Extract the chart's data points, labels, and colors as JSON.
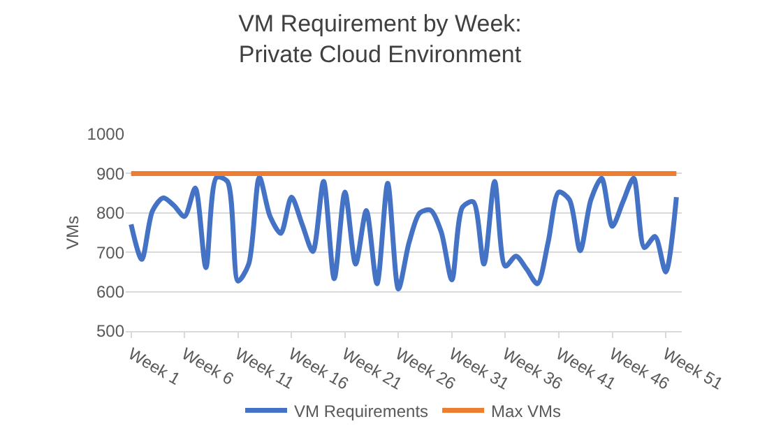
{
  "chart_data": {
    "type": "line",
    "title": "VM Requirement by Week:\nPrivate Cloud Environment",
    "ylabel": "VMs",
    "categories": [
      "Week 1",
      null,
      null,
      null,
      null,
      "Week 6",
      null,
      null,
      null,
      null,
      "Week 11",
      null,
      null,
      null,
      null,
      "Week 16",
      null,
      null,
      null,
      null,
      "Week 21",
      null,
      null,
      null,
      null,
      "Week 26",
      null,
      null,
      null,
      null,
      "Week 31",
      null,
      null,
      null,
      null,
      "Week 36",
      null,
      null,
      null,
      null,
      "Week 41",
      null,
      null,
      null,
      null,
      "Week 46",
      null,
      null,
      null,
      null,
      "Week 51",
      null
    ],
    "series": [
      {
        "name": "VM Requirements",
        "color": "#4472c4",
        "values": [
          771,
          682,
          805,
          838,
          819,
          791,
          863,
          661,
          890,
          880,
          627,
          670,
          890,
          791,
          748,
          840,
          771,
          702,
          880,
          633,
          853,
          670,
          806,
          620,
          875,
          607,
          725,
          800,
          807,
          752,
          630,
          815,
          828,
          670,
          880,
          665,
          690,
          657,
          620,
          725,
          853,
          833,
          704,
          833,
          888,
          766,
          828,
          888,
          712,
          740,
          650,
          840
        ]
      },
      {
        "name": "Max VMs",
        "color": "#ed7d31",
        "values": [
          900,
          900,
          900,
          900,
          900,
          900,
          900,
          900,
          900,
          900,
          900,
          900,
          900,
          900,
          900,
          900,
          900,
          900,
          900,
          900,
          900,
          900,
          900,
          900,
          900,
          900,
          900,
          900,
          900,
          900,
          900,
          900,
          900,
          900,
          900,
          900,
          900,
          900,
          900,
          900,
          900,
          900,
          900,
          900,
          900,
          900,
          900,
          900,
          900,
          900,
          900,
          900
        ]
      }
    ],
    "ylim": [
      500,
      1000
    ],
    "yticks": [
      500,
      600,
      700,
      800,
      900,
      1000
    ],
    "grid": "y",
    "legend": "bottom",
    "marker": "none",
    "line_style": "solid"
  }
}
